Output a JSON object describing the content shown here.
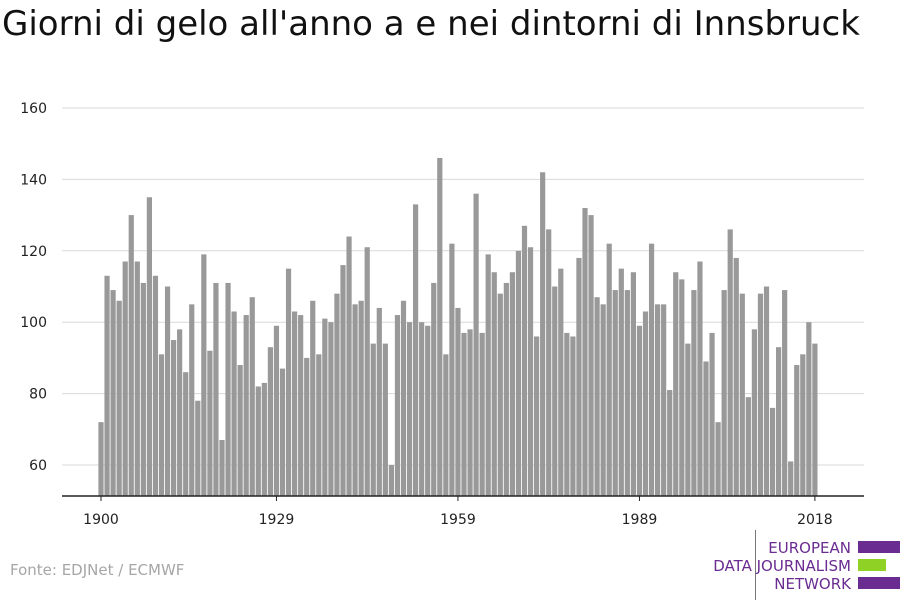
{
  "chart_data": {
    "type": "bar",
    "title": "Giorni di gelo all'anno a e nei dintorni di Innsbruck",
    "xlabel": "",
    "ylabel": "",
    "ylim": [
      51,
      163
    ],
    "yticks": [
      60,
      80,
      100,
      120,
      140,
      160
    ],
    "xticks": [
      1900,
      1929,
      1959,
      1989,
      2018
    ],
    "grid": true,
    "legend": "none",
    "x_start": 1900,
    "values": [
      72,
      113,
      109,
      106,
      117,
      130,
      117,
      111,
      135,
      113,
      91,
      110,
      95,
      98,
      86,
      105,
      78,
      119,
      92,
      111,
      67,
      111,
      103,
      88,
      102,
      107,
      82,
      83,
      93,
      99,
      87,
      115,
      103,
      102,
      90,
      106,
      91,
      101,
      100,
      108,
      116,
      124,
      105,
      106,
      121,
      94,
      104,
      94,
      60,
      102,
      106,
      100,
      133,
      100,
      99,
      111,
      146,
      91,
      122,
      104,
      97,
      98,
      136,
      97,
      119,
      114,
      108,
      111,
      114,
      120,
      127,
      121,
      96,
      142,
      126,
      110,
      115,
      97,
      96,
      118,
      132,
      130,
      107,
      105,
      122,
      109,
      115,
      109,
      114,
      99,
      103,
      122,
      105,
      105,
      81,
      114,
      112,
      94,
      109,
      117,
      89,
      97,
      72,
      109,
      126,
      118,
      108,
      79,
      98,
      108,
      110,
      76,
      93,
      109,
      61,
      88,
      91,
      100,
      94
    ]
  },
  "colors": {
    "bar": "#999999",
    "grid": "#d9d9d9",
    "axis": "#222222"
  },
  "source": "Fonte: EDJNet / ECMWF",
  "logo": {
    "line1": "EUROPEAN",
    "line2": "DATA JOURNALISM",
    "line3": "NETWORK",
    "purple": "#6a2c91",
    "green": "#8fd125"
  }
}
